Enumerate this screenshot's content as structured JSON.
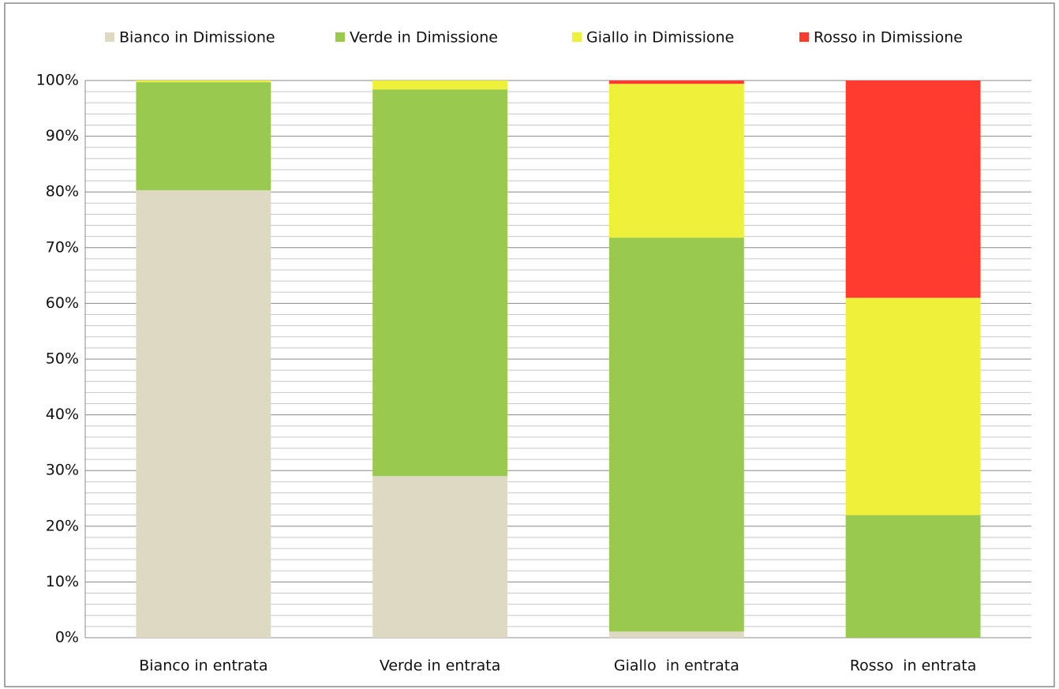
{
  "chart_data": {
    "type": "stacked_bar_100",
    "categories": [
      "Bianco in entrata",
      "Verde in entrata",
      "Giallo  in entrata",
      "Rosso  in entrata"
    ],
    "series": [
      {
        "name": "Bianco in Dimissione",
        "color": "#ddd9c3",
        "values": [
          80.3,
          29.0,
          1.1,
          0
        ]
      },
      {
        "name": "Verde in Dimissione",
        "color": "#99c94e",
        "values": [
          19.4,
          69.4,
          70.7,
          22.0
        ]
      },
      {
        "name": "Giallo in Dimissione",
        "color": "#eef03a",
        "values": [
          0.3,
          1.6,
          27.6,
          39.0
        ]
      },
      {
        "name": "Rosso in Dimissione",
        "color": "#ff3b2f",
        "values": [
          0,
          0,
          0.6,
          39.0
        ]
      }
    ],
    "ylim": [
      0,
      100
    ],
    "yticks": [
      {
        "value": 0,
        "label": "0%"
      },
      {
        "value": 10,
        "label": "10%"
      },
      {
        "value": 20,
        "label": "20%"
      },
      {
        "value": 30,
        "label": "30%"
      },
      {
        "value": 40,
        "label": "40%"
      },
      {
        "value": 50,
        "label": "50%"
      },
      {
        "value": 60,
        "label": "60%"
      },
      {
        "value": 70,
        "label": "70%"
      },
      {
        "value": 80,
        "label": "80%"
      },
      {
        "value": 90,
        "label": "90%"
      },
      {
        "value": 100,
        "label": "100%"
      }
    ],
    "minor_yticks": [
      2,
      4,
      6,
      8,
      12,
      14,
      16,
      18,
      22,
      24,
      26,
      28,
      32,
      34,
      36,
      38,
      42,
      44,
      46,
      48,
      52,
      54,
      56,
      58,
      62,
      64,
      66,
      68,
      72,
      74,
      76,
      78,
      82,
      84,
      86,
      88,
      92,
      94,
      96,
      98
    ],
    "grid": true,
    "legend": "top"
  }
}
